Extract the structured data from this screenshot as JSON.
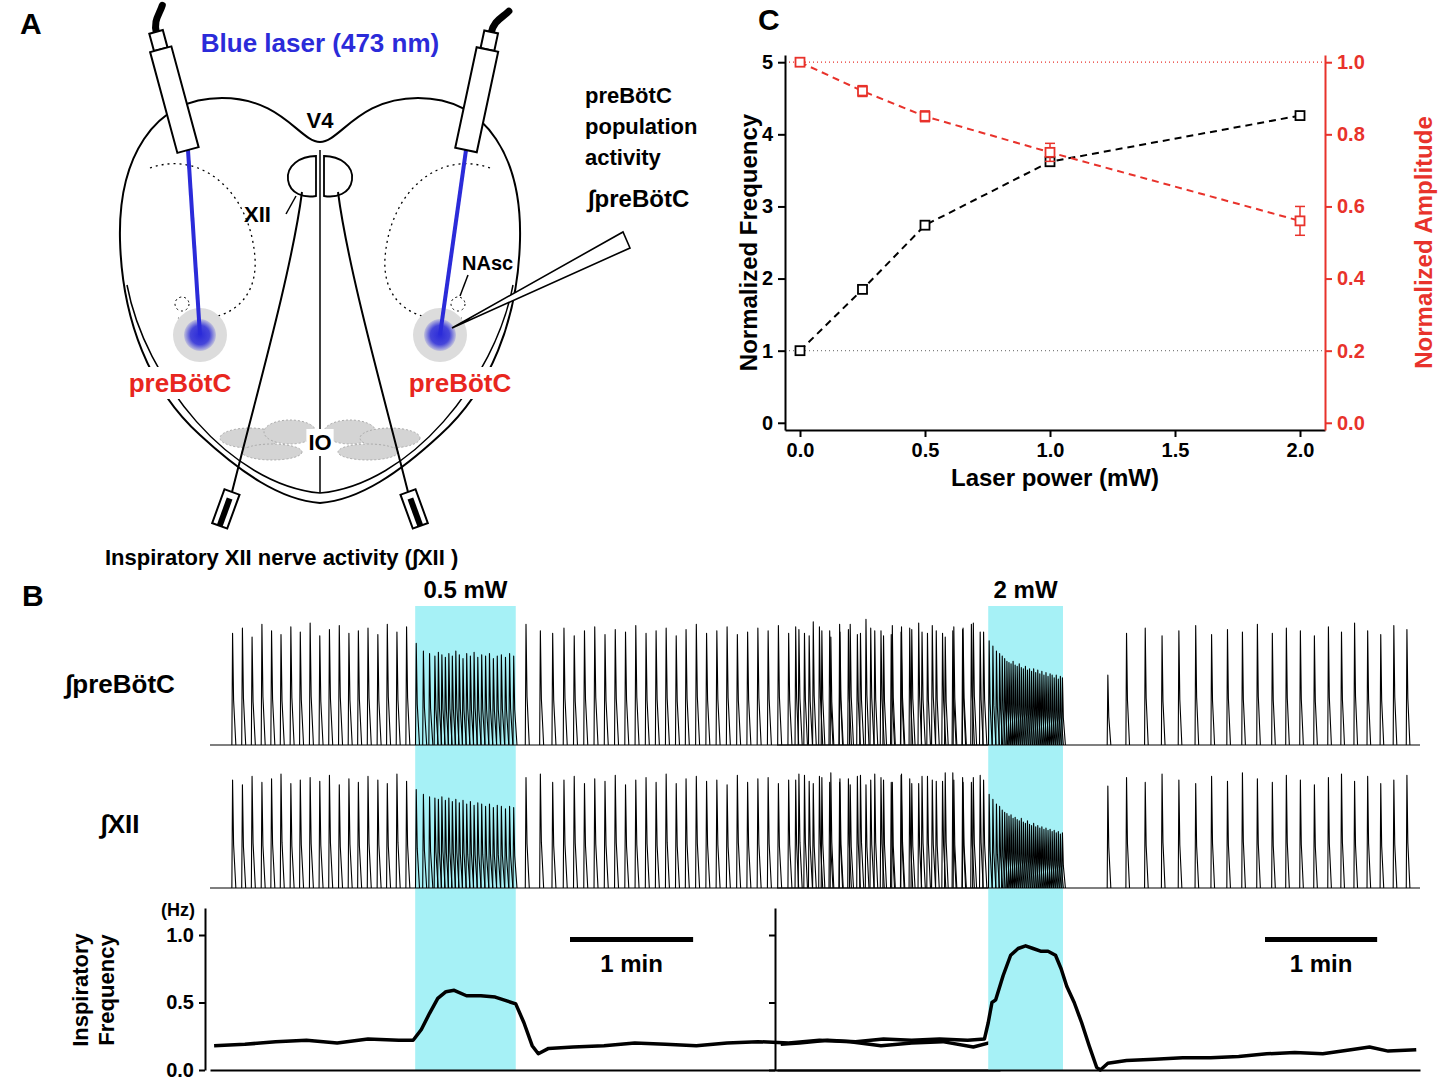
{
  "diagram": {
    "panel": "A",
    "laser_label": "Blue laser (473 nm)",
    "ventricle": "V4",
    "nucleus": "XII",
    "nucleus_ambiguus": "NAsc",
    "olive": "IO",
    "target_labels": [
      "preBötC",
      "preBötC"
    ],
    "recording_label": [
      "preBötC",
      "population",
      "activity"
    ],
    "recording_signal": "∫preBötC",
    "nerve_label": "Inspiratory XII nerve activity (∫XII )"
  },
  "chart_data": [
    {
      "type": "line",
      "panel": "C",
      "xlabel": "Laser power (mW)",
      "ylabel": "Normalized Frequency",
      "y2label": "Normalized Amplitude",
      "x": [
        0,
        0.25,
        0.5,
        1,
        2
      ],
      "series": [
        {
          "color": "#000000",
          "marker": "square",
          "line_style": "dashed",
          "values": [
            1,
            1.85,
            2.74,
            3.62,
            4.26
          ],
          "errors": [
            0.02,
            0.05,
            0.05,
            0.05,
            0.04
          ]
        },
        {
          "color": "#e8322b",
          "axis": "y2",
          "marker": "square",
          "line_style": "dashed",
          "values": [
            1,
            0.92,
            0.85,
            0.75,
            0.56
          ],
          "errors": [
            0.005,
            0.015,
            0.015,
            0.025,
            0.04
          ]
        }
      ],
      "xlim": [
        -0.06,
        2.1
      ],
      "xticks": [
        {
          "value": 0,
          "label": "0.0"
        },
        0.5,
        {
          "value": 1,
          "label": "1.0"
        },
        1.5,
        {
          "value": 2,
          "label": "2.0"
        }
      ],
      "ylim": [
        -0.1,
        5.1
      ],
      "yticks": [
        0,
        1,
        2,
        3,
        4,
        5
      ],
      "y2lim": [
        -0.02,
        1.02
      ],
      "y2ticks": [
        {
          "value": 0,
          "label": "0.0"
        },
        0.2,
        0.4,
        0.6,
        0.8,
        {
          "value": 1,
          "label": "1.0"
        }
      ],
      "hlines": [
        {
          "axis": "y",
          "value": 1,
          "color": "#808080"
        },
        {
          "axis": "y2",
          "value": 1,
          "color": "#e8322b"
        }
      ]
    },
    {
      "type": "trace",
      "panel": "B",
      "stimulus": {
        "label": "0.5 mW",
        "start": 93,
        "end": 142
      },
      "scale_bar": {
        "value": 60,
        "label": "1 min"
      },
      "xlim": [
        -7,
        378
      ],
      "ylim": [
        0,
        1
      ],
      "tick_labels": false,
      "x": [
        4,
        8.8,
        13.5,
        18.3,
        23,
        27.6,
        32.4,
        37,
        41.8,
        46.5,
        51.2,
        56,
        60.7,
        65.3,
        70,
        74.8,
        79.4,
        84.1,
        88.8,
        93.5,
        97,
        100,
        102.6,
        104.3,
        106,
        107.7,
        109.4,
        111.1,
        112.8,
        114.5,
        116.3,
        118.1,
        119.9,
        121.7,
        123.5,
        125.4,
        127.3,
        129.2,
        131.1,
        133,
        135,
        137,
        139,
        141,
        147,
        154,
        160,
        165.5,
        170.5,
        175.5,
        180.5,
        185.5,
        190.5,
        195.5,
        200.5,
        205.5,
        210.4,
        215.3,
        220.2,
        225,
        230,
        235,
        240,
        245,
        250,
        255,
        260,
        265,
        270,
        275,
        280,
        285,
        290,
        295,
        300,
        305,
        310,
        315,
        320,
        325,
        330,
        335,
        340,
        345,
        350,
        355,
        360,
        365,
        370,
        375
      ],
      "series": [
        {
          "name": "∫preBötC",
          "values": [
            0.88,
            0.92,
            0.85,
            0.95,
            0.9,
            0.87,
            0.93,
            0.89,
            0.96,
            0.86,
            0.91,
            0.94,
            0.88,
            0.9,
            0.92,
            0.87,
            0.95,
            0.89,
            0.93,
            0.8,
            0.74,
            0.72,
            0.7,
            0.73,
            0.71,
            0.69,
            0.72,
            0.7,
            0.74,
            0.71,
            0.68,
            0.72,
            0.7,
            0.73,
            0.69,
            0.71,
            0.7,
            0.72,
            0.68,
            0.7,
            0.71,
            0.69,
            0.72,
            0.7,
            0.95,
            0.9,
            0.88,
            0.92,
            0.86,
            0.9,
            0.93,
            0.87,
            0.91,
            0.89,
            0.94,
            0.88,
            0.9,
            0.92,
            0.86,
            0.91,
            0.95,
            0.88,
            0.9,
            0.93,
            0.87,
            0.89,
            0.92,
            0.9,
            0.94,
            0.88,
            0.91,
            0.86,
            0.93,
            0.9,
            0.89,
            0.95,
            0.88,
            0.92,
            0.9,
            0.87,
            0.93,
            0.91,
            0.89,
            0.94,
            0.88,
            0.9,
            0.92,
            0.96,
            0.89,
            0.93
          ]
        },
        {
          "name": "∫XII",
          "values": [
            0.9,
            0.86,
            0.93,
            0.88,
            0.91,
            0.95,
            0.87,
            0.9,
            0.92,
            0.89,
            0.94,
            0.86,
            0.91,
            0.88,
            0.93,
            0.9,
            0.87,
            0.95,
            0.89,
            0.82,
            0.78,
            0.76,
            0.75,
            0.74,
            0.76,
            0.73,
            0.75,
            0.72,
            0.74,
            0.71,
            0.73,
            0.7,
            0.72,
            0.69,
            0.71,
            0.7,
            0.68,
            0.7,
            0.67,
            0.69,
            0.68,
            0.66,
            0.68,
            0.67,
            0.92,
            0.95,
            0.88,
            0.9,
            0.93,
            0.87,
            0.91,
            0.89,
            0.94,
            0.86,
            0.9,
            0.92,
            0.88,
            0.95,
            0.87,
            0.91,
            0.93,
            0.89,
            0.9,
            0.86,
            0.94,
            0.88,
            0.91,
            0.92,
            0.87,
            0.9,
            0.95,
            0.89,
            0.93,
            0.88,
            0.91,
            0.86,
            0.94,
            0.9,
            0.92,
            0.88,
            0.95,
            0.87,
            0.93,
            0.9,
            0.89,
            0.96,
            0.88,
            0.92,
            0.9,
            0.94
          ]
        }
      ]
    },
    {
      "type": "line",
      "ylabel": "Inspiratory Frequency",
      "yunit": "(Hz)",
      "xlim": [
        -7,
        378
      ],
      "ylim": [
        0,
        1.2
      ],
      "yticks": [
        {
          "value": 0,
          "label": "0.0"
        },
        0.5,
        {
          "value": 1,
          "label": "1.0"
        }
      ],
      "x": [
        -5,
        10,
        25,
        40,
        55,
        70,
        85,
        92,
        96,
        100,
        104,
        108,
        112,
        118,
        125,
        132,
        138,
        142,
        146,
        150,
        153,
        158,
        170,
        185,
        200,
        215,
        230,
        245,
        260,
        275,
        290,
        305,
        320,
        335,
        350,
        365,
        375
      ],
      "values": [
        0.18,
        0.19,
        0.21,
        0.22,
        0.2,
        0.23,
        0.22,
        0.22,
        0.3,
        0.42,
        0.53,
        0.58,
        0.59,
        0.55,
        0.55,
        0.54,
        0.51,
        0.49,
        0.35,
        0.18,
        0.12,
        0.16,
        0.17,
        0.18,
        0.2,
        0.19,
        0.18,
        0.2,
        0.21,
        0.2,
        0.22,
        0.21,
        0.18,
        0.2,
        0.21,
        0.17,
        0.21
      ]
    },
    {
      "type": "trace",
      "stimulus": {
        "label": "2 mW",
        "start": 106,
        "end": 146
      },
      "scale_bar": {
        "value": 60,
        "label": "1 min"
      },
      "xlim": [
        -7,
        337
      ],
      "ylim": [
        0,
        1
      ],
      "tick_labels": false,
      "x": [
        3,
        7.7,
        12.4,
        17,
        21.8,
        26.5,
        31.2,
        36,
        40.6,
        45.3,
        50,
        54.7,
        59.4,
        64,
        68.8,
        73.5,
        78.2,
        83,
        87.6,
        92.3,
        97,
        101.7,
        106.5,
        108.5,
        110.4,
        112.1,
        113.5,
        114.8,
        116,
        117.1,
        118.2,
        119.3,
        120.4,
        121.5,
        122.6,
        123.7,
        124.8,
        125.9,
        127,
        128.1,
        129.2,
        130.3,
        131.4,
        132.5,
        133.6,
        134.7,
        135.8,
        136.9,
        138,
        139.1,
        140.2,
        141.3,
        142.4,
        143.5,
        144.6,
        145.7,
        170,
        180,
        190,
        199,
        208,
        217,
        225.5,
        234,
        242,
        250,
        258,
        265.5,
        273,
        280.5,
        288,
        295,
        302,
        309,
        316,
        323,
        330
      ],
      "series": [
        {
          "values": [
            0.93,
            0.88,
            0.97,
            0.9,
            0.85,
            0.95,
            0.91,
            0.87,
            0.99,
            0.9,
            0.86,
            0.94,
            0.89,
            0.92,
            0.96,
            0.88,
            0.9,
            0.85,
            0.93,
            0.91,
            0.95,
            0.89,
            0.82,
            0.78,
            0.74,
            0.72,
            0.7,
            0.68,
            0.66,
            0.65,
            0.64,
            0.66,
            0.63,
            0.62,
            0.64,
            0.61,
            0.6,
            0.62,
            0.59,
            0.6,
            0.58,
            0.6,
            0.57,
            0.59,
            0.56,
            0.58,
            0.55,
            0.57,
            0.54,
            0.56,
            0.55,
            0.53,
            0.55,
            0.52,
            0.54,
            0.53,
            0.55,
            0.88,
            0.92,
            0.86,
            0.9,
            0.94,
            0.87,
            0.91,
            0.89,
            0.95,
            0.88,
            0.92,
            0.9,
            0.86,
            0.93,
            0.89,
            0.96,
            0.9,
            0.87,
            0.94,
            0.91
          ]
        },
        {
          "values": [
            0.9,
            0.94,
            0.87,
            0.92,
            0.96,
            0.88,
            0.91,
            0.93,
            0.86,
            0.95,
            0.9,
            0.88,
            0.94,
            0.91,
            0.87,
            0.93,
            0.89,
            0.96,
            0.9,
            0.92,
            0.88,
            0.94,
            0.78,
            0.74,
            0.7,
            0.68,
            0.65,
            0.63,
            0.62,
            0.6,
            0.61,
            0.58,
            0.59,
            0.57,
            0.56,
            0.58,
            0.55,
            0.54,
            0.56,
            0.53,
            0.52,
            0.54,
            0.51,
            0.52,
            0.5,
            0.51,
            0.49,
            0.5,
            0.48,
            0.49,
            0.47,
            0.48,
            0.46,
            0.47,
            0.45,
            0.46,
            0.85,
            0.92,
            0.88,
            0.95,
            0.9,
            0.87,
            0.93,
            0.89,
            0.96,
            0.91,
            0.88,
            0.94,
            0.9,
            0.86,
            0.92,
            0.95,
            0.89,
            0.93,
            0.87,
            0.9,
            0.94
          ]
        }
      ]
    },
    {
      "type": "line",
      "xlim": [
        -7,
        337
      ],
      "ylim": [
        0,
        1.2
      ],
      "yticks": [
        0,
        0.5,
        1
      ],
      "tick_labels": false,
      "x": [
        -5,
        5,
        20,
        35,
        50,
        65,
        80,
        95,
        104,
        106,
        108,
        110,
        114,
        118,
        122,
        126,
        130,
        134,
        138,
        142,
        145,
        148,
        152,
        156,
        160,
        164,
        166,
        170,
        180,
        195,
        210,
        225,
        240,
        255,
        270,
        285,
        300,
        310,
        320,
        335
      ],
      "values": [
        0.19,
        0.2,
        0.22,
        0.21,
        0.23,
        0.22,
        0.23,
        0.22,
        0.23,
        0.35,
        0.5,
        0.52,
        0.7,
        0.85,
        0.9,
        0.92,
        0.9,
        0.88,
        0.88,
        0.85,
        0.75,
        0.62,
        0.5,
        0.35,
        0.18,
        0.02,
        0,
        0.05,
        0.07,
        0.08,
        0.09,
        0.09,
        0.1,
        0.12,
        0.13,
        0.12,
        0.15,
        0.17,
        0.14,
        0.15
      ]
    }
  ]
}
